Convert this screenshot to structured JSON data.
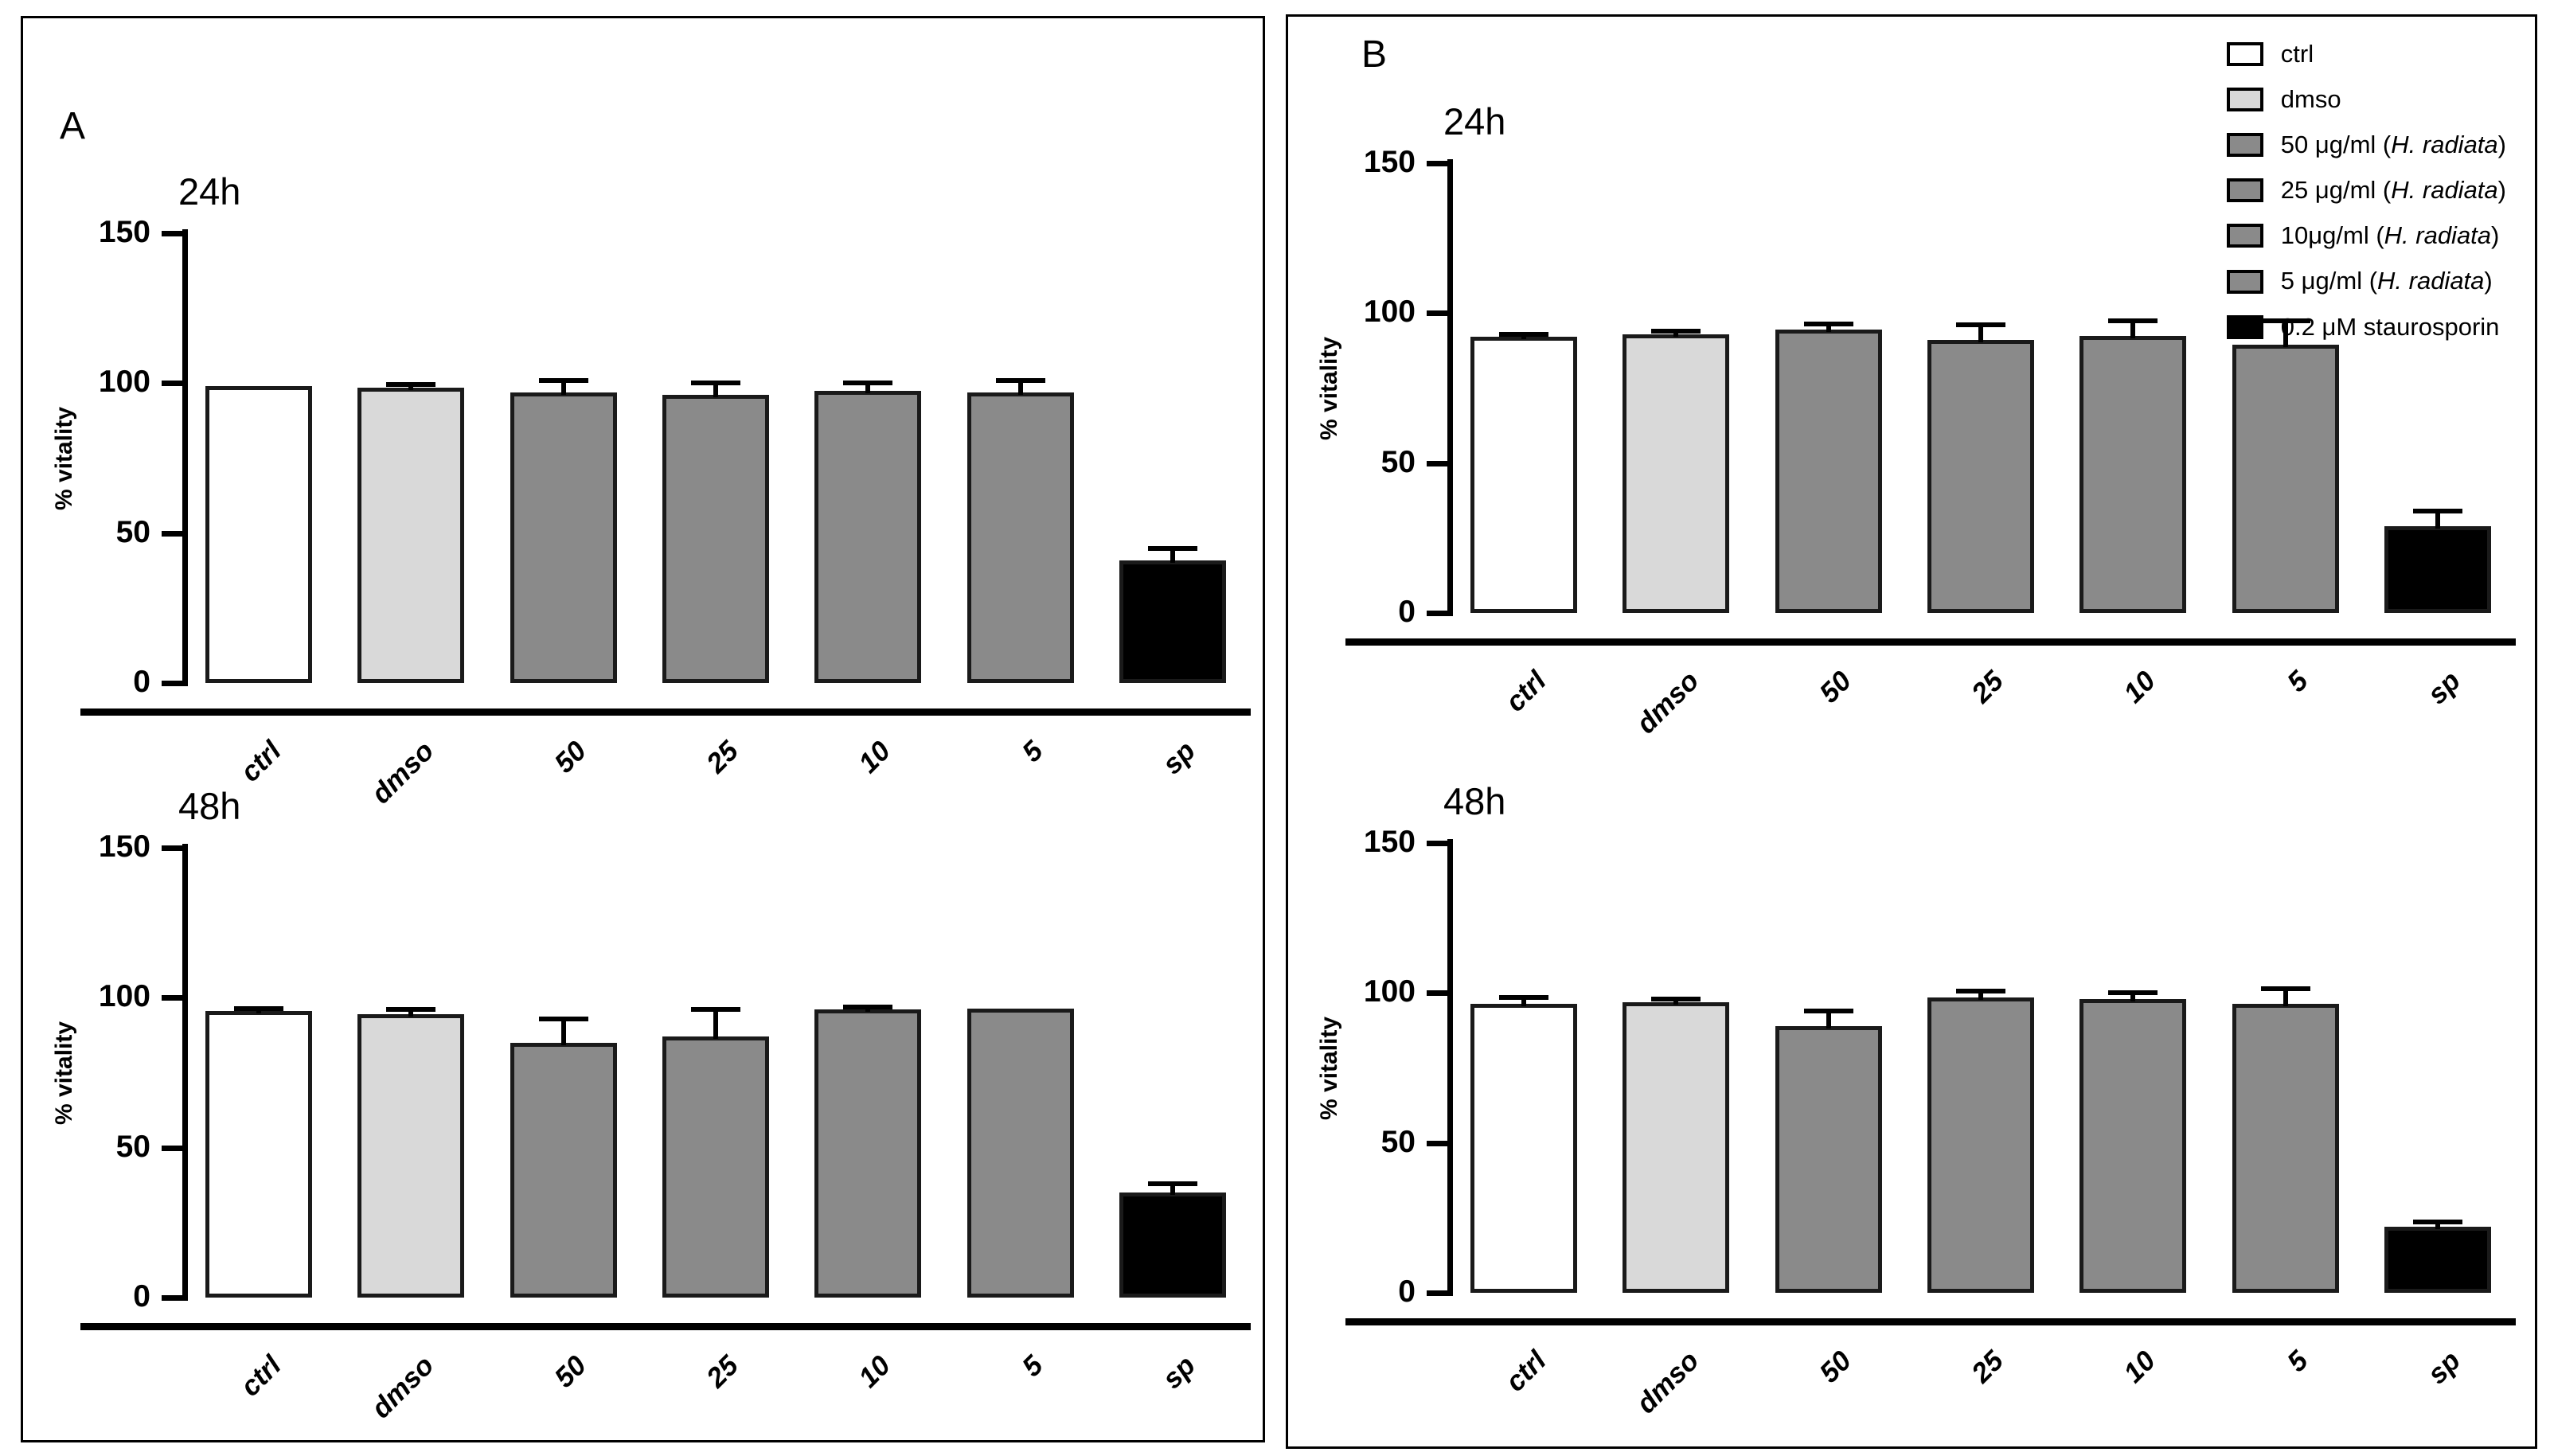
{
  "figure": {
    "panels": [
      {
        "label": "A"
      },
      {
        "label": "B"
      }
    ]
  },
  "legend": {
    "items": [
      {
        "pre": "ctrl",
        "italic": "",
        "post": "",
        "fill": "#ffffff"
      },
      {
        "pre": "dmso",
        "italic": "",
        "post": "",
        "fill": "#d9d9d9"
      },
      {
        "pre": "50 μg/ml (",
        "italic": "H. radiata",
        "post": ")",
        "fill": "#8a8a8a"
      },
      {
        "pre": "25 μg/ml (",
        "italic": "H. radiata",
        "post": ")",
        "fill": "#8a8a8a"
      },
      {
        "pre": "10μg/ml (",
        "italic": "H. radiata",
        "post": ")",
        "fill": "#8a8a8a"
      },
      {
        "pre": "5 μg/ml (",
        "italic": "H. radiata",
        "post": ")",
        "fill": "#8a8a8a"
      },
      {
        "pre": "0.2 μM staurosporin",
        "italic": "",
        "post": "",
        "fill": "#000000"
      }
    ]
  },
  "bar_style": {
    "fills": [
      "#ffffff",
      "#d9d9d9",
      "#8a8a8a",
      "#8a8a8a",
      "#8a8a8a",
      "#8a8a8a",
      "#000000"
    ],
    "border_color": "#1a1a1a",
    "error_color": "#000000"
  },
  "chart_data": [
    {
      "type": "bar",
      "panel": "A",
      "title": "24h",
      "ylabel": "% vitality",
      "ylim": [
        0,
        150
      ],
      "yticks": [
        0,
        50,
        100,
        150
      ],
      "grid": false,
      "categories": [
        "ctrl",
        "dmso",
        "50",
        "25",
        "10",
        "5",
        "sp"
      ],
      "values": [
        99,
        98.5,
        97,
        96,
        97.5,
        97,
        41
      ],
      "errors_plus": [
        0,
        1,
        4,
        4,
        2.5,
        4,
        4
      ]
    },
    {
      "type": "bar",
      "panel": "A",
      "title": "48h",
      "ylabel": "% vitality",
      "ylim": [
        0,
        150
      ],
      "yticks": [
        0,
        50,
        100,
        150
      ],
      "grid": false,
      "categories": [
        "ctrl",
        "dmso",
        "50",
        "25",
        "10",
        "5",
        "sp"
      ],
      "values": [
        95.5,
        94.5,
        85,
        87,
        96,
        96.5,
        35
      ],
      "errors_plus": [
        1,
        1.5,
        8,
        9,
        1,
        0,
        3
      ]
    },
    {
      "type": "bar",
      "panel": "B",
      "title": "24h",
      "ylabel": "% vitality",
      "ylim": [
        0,
        150
      ],
      "yticks": [
        0,
        50,
        100,
        150
      ],
      "grid": false,
      "categories": [
        "ctrl",
        "dmso",
        "50",
        "25",
        "10",
        "5",
        "sp"
      ],
      "values": [
        92,
        93,
        94.5,
        91,
        92.5,
        89.5,
        29
      ],
      "errors_plus": [
        1,
        1,
        2,
        5,
        5,
        8,
        5
      ]
    },
    {
      "type": "bar",
      "panel": "B",
      "title": "48h",
      "ylabel": "% vitality",
      "ylim": [
        0,
        150
      ],
      "yticks": [
        0,
        50,
        100,
        150
      ],
      "grid": false,
      "categories": [
        "ctrl",
        "dmso",
        "50",
        "25",
        "10",
        "5",
        "sp"
      ],
      "values": [
        96.5,
        97,
        89,
        98.5,
        98,
        96.5,
        22
      ],
      "errors_plus": [
        2,
        1,
        5,
        2,
        2,
        5,
        1.5
      ]
    }
  ]
}
